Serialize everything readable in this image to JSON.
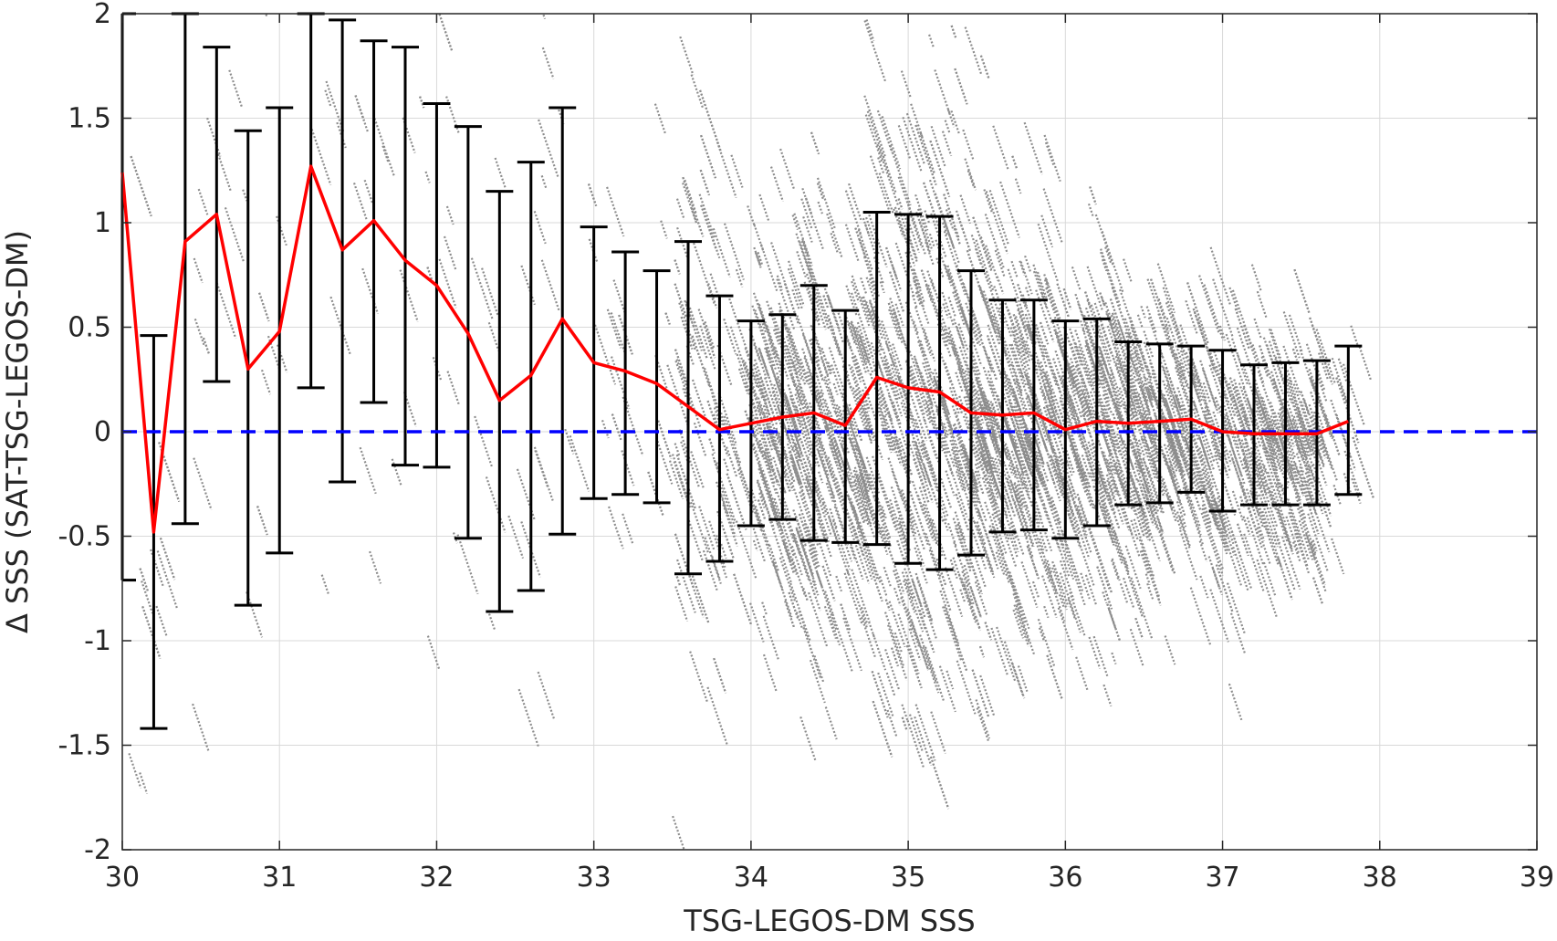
{
  "chart_data": {
    "type": "scatter",
    "title": "",
    "xlabel": "TSG-LEGOS-DM SSS",
    "ylabel": "Δ SSS (SAT-TSG-LEGOS-DM)",
    "xlim": [
      30,
      39
    ],
    "ylim": [
      -2,
      2
    ],
    "xticks": [
      "30",
      "31",
      "32",
      "33",
      "34",
      "35",
      "36",
      "37",
      "38",
      "39"
    ],
    "yticks": [
      "2",
      "1.5",
      "1",
      "0.5",
      "0",
      "-0.5",
      "-1",
      "-1.5",
      "-2"
    ],
    "grid": true,
    "colors": {
      "scatter": "#8c8c8c",
      "mean_line": "#ff0000",
      "error_bars": "#000000",
      "zero_line": "#0000ff",
      "grid": "#d9d9d9"
    },
    "zero_reference": {
      "y": 0,
      "style": "dashed"
    },
    "binned_stats": {
      "x": [
        30.0,
        30.2,
        30.4,
        30.6,
        30.8,
        31.0,
        31.2,
        31.4,
        31.6,
        31.8,
        32.0,
        32.2,
        32.4,
        32.6,
        32.8,
        33.0,
        33.2,
        33.4,
        33.6,
        33.8,
        34.0,
        34.2,
        34.4,
        34.6,
        34.8,
        35.0,
        35.2,
        35.4,
        35.6,
        35.8,
        36.0,
        36.2,
        36.4,
        36.6,
        36.8,
        37.0,
        37.2,
        37.4,
        37.6,
        37.8
      ],
      "mean": [
        1.24,
        -0.48,
        0.91,
        1.04,
        0.3,
        0.48,
        1.27,
        0.87,
        1.01,
        0.82,
        0.7,
        0.47,
        0.15,
        0.27,
        0.54,
        0.33,
        0.29,
        0.23,
        0.12,
        0.01,
        0.04,
        0.07,
        0.09,
        0.03,
        0.26,
        0.21,
        0.19,
        0.09,
        0.08,
        0.09,
        0.01,
        0.05,
        0.04,
        0.05,
        0.06,
        0.0,
        -0.01,
        -0.01,
        -0.01,
        0.05
      ],
      "upper": [
        2.0,
        0.46,
        2.0,
        1.84,
        1.44,
        1.55,
        2.0,
        1.97,
        1.87,
        1.84,
        1.57,
        1.46,
        1.15,
        1.29,
        1.55,
        0.98,
        0.86,
        0.77,
        0.91,
        0.65,
        0.53,
        0.56,
        0.7,
        0.58,
        1.05,
        1.04,
        1.03,
        0.77,
        0.63,
        0.63,
        0.53,
        0.54,
        0.43,
        0.42,
        0.41,
        0.39,
        0.32,
        0.33,
        0.34,
        0.41
      ],
      "lower": [
        -0.71,
        -1.42,
        -0.44,
        0.24,
        -0.83,
        -0.58,
        0.21,
        -0.24,
        0.14,
        -0.16,
        -0.17,
        -0.51,
        -0.86,
        -0.76,
        -0.49,
        -0.32,
        -0.3,
        -0.34,
        -0.68,
        -0.62,
        -0.45,
        -0.42,
        -0.52,
        -0.53,
        -0.54,
        -0.63,
        -0.66,
        -0.59,
        -0.48,
        -0.47,
        -0.51,
        -0.45,
        -0.35,
        -0.34,
        -0.29,
        -0.38,
        -0.35,
        -0.35,
        -0.35,
        -0.3
      ]
    }
  }
}
